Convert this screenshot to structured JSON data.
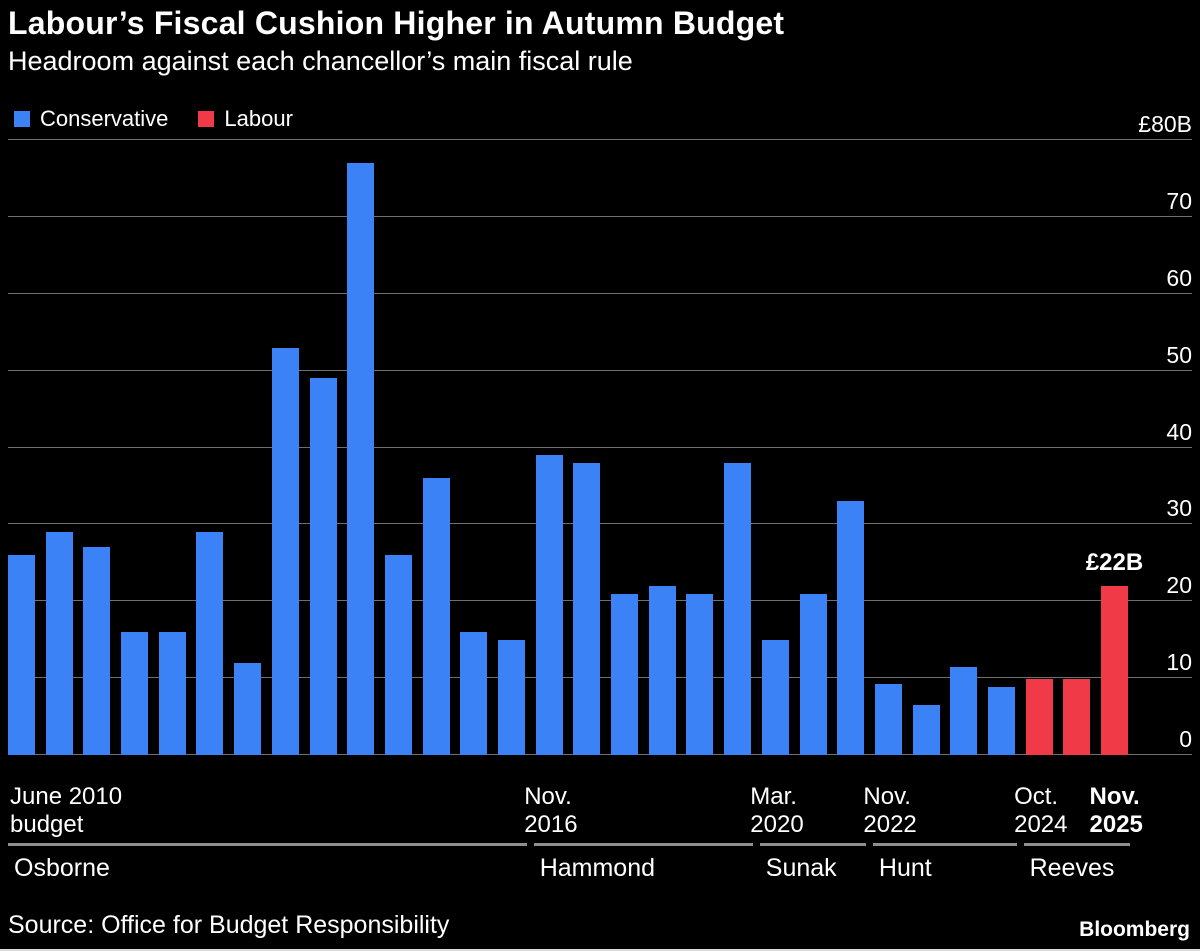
{
  "header": {
    "title": "Labour’s Fiscal Cushion Higher in Autumn Budget",
    "subtitle": "Headroom against each chancellor’s main fiscal rule"
  },
  "legend": [
    {
      "label": "Conservative"
    },
    {
      "label": "Labour"
    }
  ],
  "footer": {
    "source": "Source: Office for Budget Responsibility",
    "brand": "Bloomberg"
  },
  "chart_data": {
    "type": "bar",
    "title": "Labour’s Fiscal Cushion Higher in Autumn Budget",
    "subtitle": "Headroom against each chancellor’s main fiscal rule",
    "unit": "£B",
    "ylim": [
      0,
      80
    ],
    "yticks": [
      0,
      10,
      20,
      30,
      40,
      50,
      60,
      70,
      80
    ],
    "ytick_labels": [
      "0",
      "10",
      "20",
      "30",
      "40",
      "50",
      "60",
      "70",
      "£80B"
    ],
    "grid": true,
    "legend_position": "top-left",
    "series_colors": {
      "Conservative": "#3B82F6",
      "Labour": "#F03A47"
    },
    "colors": {
      "background": "#000000",
      "gridline": "#6F6F6F",
      "group_line": "#8F8F8F",
      "text": "#FFFFFF"
    },
    "bars": [
      {
        "party": "Conservative",
        "value": 26
      },
      {
        "party": "Conservative",
        "value": 29
      },
      {
        "party": "Conservative",
        "value": 27
      },
      {
        "party": "Conservative",
        "value": 16
      },
      {
        "party": "Conservative",
        "value": 16
      },
      {
        "party": "Conservative",
        "value": 29
      },
      {
        "party": "Conservative",
        "value": 12
      },
      {
        "party": "Conservative",
        "value": 53
      },
      {
        "party": "Conservative",
        "value": 49
      },
      {
        "party": "Conservative",
        "value": 77
      },
      {
        "party": "Conservative",
        "value": 26
      },
      {
        "party": "Conservative",
        "value": 36
      },
      {
        "party": "Conservative",
        "value": 16
      },
      {
        "party": "Conservative",
        "value": 15
      },
      {
        "party": "Conservative",
        "value": 39
      },
      {
        "party": "Conservative",
        "value": 38
      },
      {
        "party": "Conservative",
        "value": 21
      },
      {
        "party": "Conservative",
        "value": 22
      },
      {
        "party": "Conservative",
        "value": 21
      },
      {
        "party": "Conservative",
        "value": 38
      },
      {
        "party": "Conservative",
        "value": 15
      },
      {
        "party": "Conservative",
        "value": 21
      },
      {
        "party": "Conservative",
        "value": 33
      },
      {
        "party": "Conservative",
        "value": 9.2
      },
      {
        "party": "Conservative",
        "value": 6.5
      },
      {
        "party": "Conservative",
        "value": 11.5
      },
      {
        "party": "Conservative",
        "value": 8.9
      },
      {
        "party": "Labour",
        "value": 9.9
      },
      {
        "party": "Labour",
        "value": 9.9
      },
      {
        "party": "Labour",
        "value": 22
      }
    ],
    "annotation": {
      "text": "£22B",
      "bar_index": 29
    },
    "x_ticks": [
      {
        "bar_index": 0,
        "lines": [
          "June 2010",
          "budget"
        ],
        "align": "left",
        "bold": false
      },
      {
        "bar_index": 14,
        "lines": [
          "Nov.",
          "2016"
        ],
        "align": "center",
        "bold": false
      },
      {
        "bar_index": 20,
        "lines": [
          "Mar.",
          "2020"
        ],
        "align": "center",
        "bold": false
      },
      {
        "bar_index": 23,
        "lines": [
          "Nov.",
          "2022"
        ],
        "align": "center",
        "bold": false
      },
      {
        "bar_index": 27,
        "lines": [
          "Oct.",
          "2024"
        ],
        "align": "center",
        "bold": false
      },
      {
        "bar_index": 29,
        "lines": [
          "Nov.",
          "2025"
        ],
        "align": "center",
        "bold": true
      }
    ],
    "groups": [
      {
        "label": "Osborne",
        "from": 0,
        "to": 13
      },
      {
        "label": "Hammond",
        "from": 14,
        "to": 19
      },
      {
        "label": "Sunak",
        "from": 20,
        "to": 22
      },
      {
        "label": "Hunt",
        "from": 23,
        "to": 26
      },
      {
        "label": "Reeves",
        "from": 27,
        "to": 29
      }
    ]
  }
}
